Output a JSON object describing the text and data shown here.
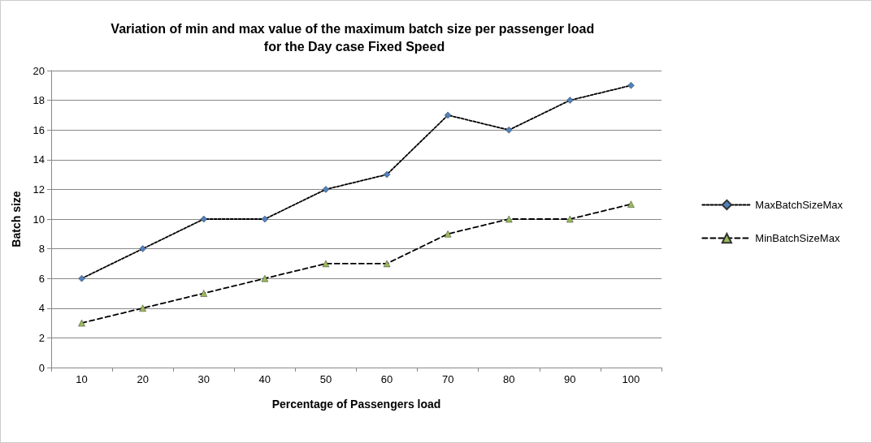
{
  "chart_data": {
    "type": "line",
    "title": "Variation of min and max value of the maximum batch size per passenger load for the Day case Fixed Speed",
    "xlabel": "Percentage of Passengers load",
    "ylabel": "Batch size",
    "categories": [
      "10",
      "20",
      "30",
      "40",
      "50",
      "60",
      "70",
      "80",
      "90",
      "100"
    ],
    "series": [
      {
        "name": "MaxBatchSizeMax",
        "color": "#4f81bd",
        "marker": "diamond",
        "line_style": "dotted",
        "values": [
          6,
          8,
          10,
          10,
          12,
          13,
          17,
          16,
          18,
          19
        ]
      },
      {
        "name": "MinBatchSizeMax",
        "color": "#9bbb59",
        "marker": "triangle",
        "line_style": "dashed",
        "values": [
          3,
          4,
          5,
          6,
          7,
          7,
          9,
          10,
          10,
          11
        ]
      }
    ],
    "ylim": [
      0,
      20
    ],
    "yticks": [
      0,
      2,
      4,
      6,
      8,
      10,
      12,
      14,
      16,
      18,
      20
    ],
    "grid": "y",
    "legend": "right"
  }
}
